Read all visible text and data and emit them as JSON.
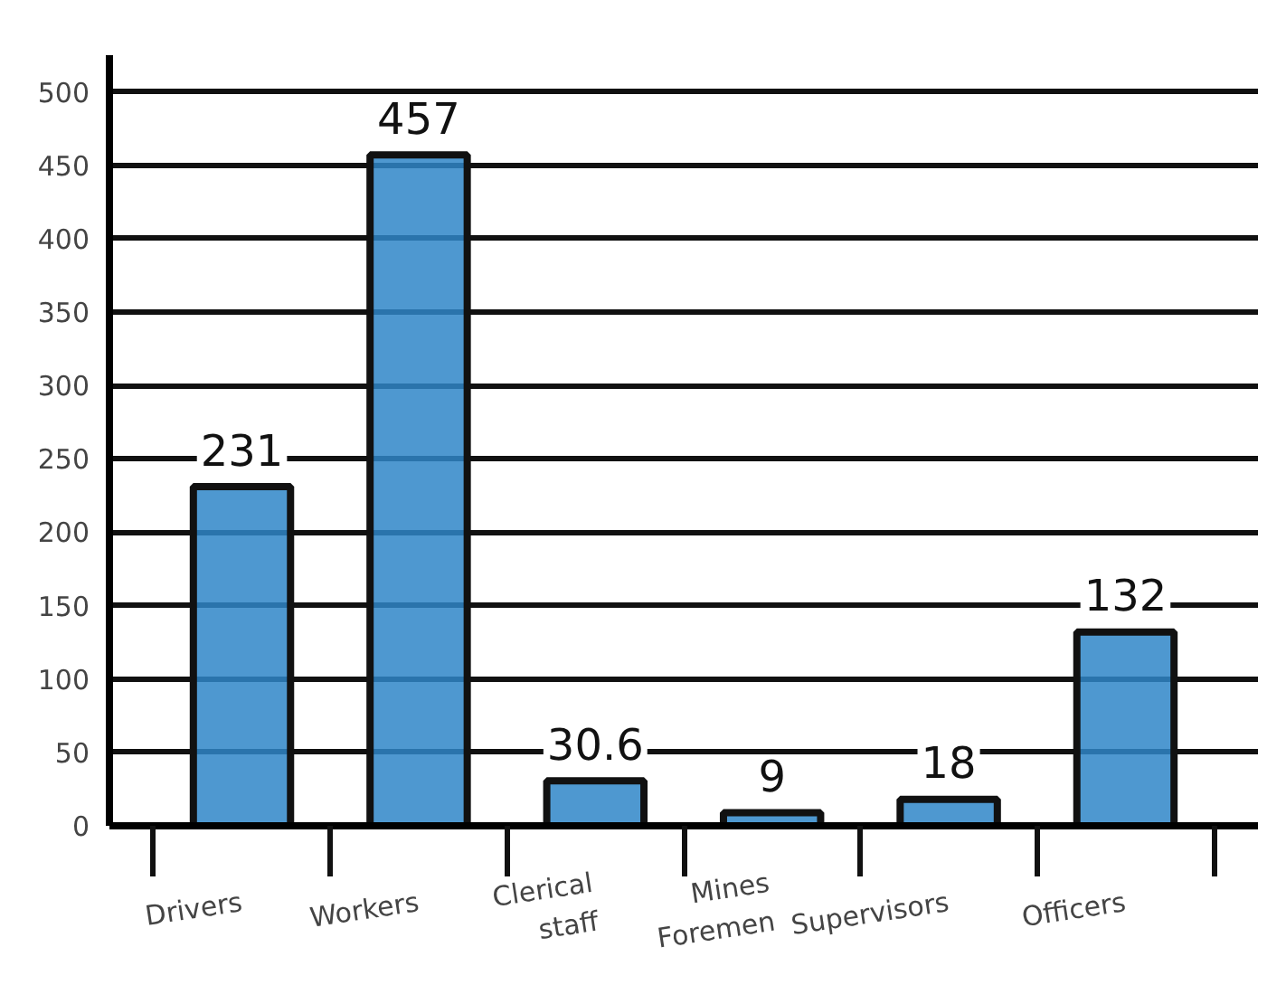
{
  "chart_data": {
    "type": "bar",
    "categories": [
      "Drivers",
      "Workers",
      "Clerical staff",
      "Mines Foremen",
      "Supervisors",
      "Officers"
    ],
    "values": [
      231,
      457,
      30.6,
      9,
      18,
      132
    ],
    "color": "#2f86c8",
    "ylim": [
      0,
      525
    ],
    "yticks": [
      0,
      50,
      100,
      150,
      200,
      250,
      300,
      350,
      400,
      450,
      500
    ],
    "grid": "y",
    "data_labels": true
  }
}
